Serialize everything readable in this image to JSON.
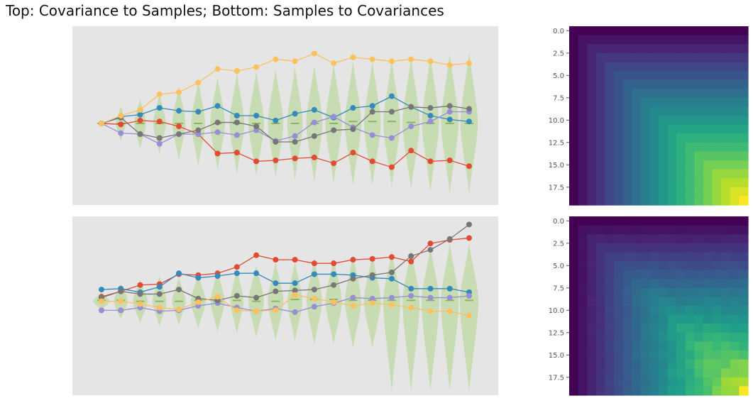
{
  "figure": {
    "title": "Top: Covariance to Samples; Bottom: Samples to Covariances"
  },
  "colors": {
    "panel_bg": "#e5e5e5",
    "violin": "#c6dbb0",
    "mean_marker": "#8db65a",
    "series": [
      "#e24a33",
      "#348abd",
      "#988ed5",
      "#777777",
      "#fbc15e"
    ]
  },
  "chart_data": [
    {
      "type": "line",
      "panel": "top-violin",
      "x": [
        0,
        1,
        2,
        3,
        4,
        5,
        6,
        7,
        8,
        9,
        10,
        11,
        12,
        13,
        14,
        15,
        16,
        17,
        18,
        19
      ],
      "ylim": [
        -4.2,
        5.0
      ],
      "violin_halfwidth": [
        0.05,
        0.25,
        0.3,
        0.32,
        0.34,
        0.36,
        0.38,
        0.38,
        0.4,
        0.4,
        0.4,
        0.42,
        0.42,
        0.42,
        0.43,
        0.43,
        0.44,
        0.44,
        0.45,
        0.45
      ],
      "violin_up": [
        0.1,
        0.9,
        1.3,
        1.6,
        1.9,
        2.2,
        2.4,
        2.6,
        2.7,
        2.8,
        2.9,
        3.0,
        3.1,
        3.2,
        3.2,
        3.3,
        3.4,
        3.5,
        3.6,
        3.7
      ],
      "violin_down": [
        0.1,
        0.9,
        1.3,
        1.6,
        1.9,
        2.2,
        2.4,
        2.6,
        2.7,
        2.8,
        2.9,
        3.0,
        3.1,
        3.2,
        3.2,
        3.3,
        3.4,
        3.5,
        3.6,
        3.6
      ],
      "means": [
        0,
        0,
        0,
        0,
        0,
        0,
        0,
        0,
        0,
        0,
        0,
        0,
        0,
        0.1,
        0.1,
        0.1,
        0.05,
        0,
        0,
        0
      ],
      "series": [
        {
          "values": [
            0,
            -0.05,
            0.15,
            0.1,
            -0.15,
            -0.55,
            -1.55,
            -1.5,
            -1.95,
            -1.9,
            -1.8,
            -1.75,
            -2.05,
            -1.5,
            -1.95,
            -2.25,
            -1.4,
            -1.95,
            -1.9,
            -2.2
          ]
        },
        {
          "values": [
            0,
            0.35,
            0.45,
            0.8,
            0.65,
            0.6,
            0.9,
            0.4,
            0.4,
            0.15,
            0.5,
            0.7,
            0.3,
            0.8,
            0.9,
            1.4,
            0.85,
            0.4,
            0.2,
            0.1
          ]
        },
        {
          "values": [
            0,
            -0.5,
            -0.55,
            -1.05,
            -0.55,
            -0.55,
            -0.45,
            -0.6,
            -0.35,
            -0.9,
            -0.65,
            0.05,
            0.35,
            -0.2,
            -0.6,
            -0.75,
            -0.15,
            0.1,
            0.6,
            0.6
          ]
        },
        {
          "values": [
            0,
            0.3,
            -0.55,
            -0.75,
            -0.55,
            -0.35,
            0.05,
            0.05,
            -0.15,
            -0.95,
            -0.95,
            -0.65,
            -0.35,
            -0.3,
            0.6,
            0.6,
            0.85,
            0.8,
            0.9,
            0.75
          ]
        },
        {
          "values": [
            0,
            0.4,
            0.7,
            1.5,
            1.6,
            2.1,
            2.8,
            2.7,
            2.9,
            3.3,
            3.2,
            3.6,
            3.1,
            3.4,
            3.3,
            3.2,
            3.3,
            3.2,
            3.0,
            3.1
          ]
        }
      ]
    },
    {
      "type": "heatmap",
      "panel": "top-covariance",
      "size": 20,
      "yticks": [
        "0.0",
        "2.5",
        "5.0",
        "7.5",
        "10.0",
        "12.5",
        "15.0",
        "17.5"
      ],
      "ytick_values": [
        0,
        2.5,
        5,
        7.5,
        10,
        12.5,
        15,
        17.5
      ],
      "pattern": "min"
    },
    {
      "type": "line",
      "panel": "bottom-violin",
      "x": [
        0,
        1,
        2,
        3,
        4,
        5,
        6,
        7,
        8,
        9,
        10,
        11,
        12,
        13,
        14,
        15,
        16,
        17,
        18,
        19
      ],
      "ylim": [
        -5.2,
        4.7
      ],
      "violin_halfwidth": [
        0.42,
        0.36,
        0.38,
        0.36,
        0.35,
        0.38,
        0.36,
        0.34,
        0.4,
        0.4,
        0.38,
        0.4,
        0.42,
        0.42,
        0.44,
        0.44,
        0.44,
        0.46,
        0.46,
        0.48
      ],
      "violin_up": [
        0.5,
        1.0,
        1.2,
        1.4,
        1.3,
        1.5,
        1.7,
        1.8,
        2.0,
        2.2,
        2.2,
        2.4,
        2.4,
        2.6,
        2.6,
        2.8,
        2.9,
        3.0,
        3.2,
        3.2
      ],
      "violin_down": [
        0.5,
        1.0,
        1.2,
        1.4,
        1.3,
        1.5,
        1.7,
        1.8,
        2.0,
        2.2,
        2.2,
        2.4,
        2.4,
        2.6,
        2.6,
        5.0,
        5.0,
        5.0,
        5.0,
        5.0
      ],
      "means": [
        0.05,
        0.05,
        0,
        0,
        0,
        0.05,
        0,
        0.05,
        0,
        0,
        0.1,
        0.1,
        0.1,
        0.05,
        0.05,
        0.05,
        0.05,
        0.05,
        0.05,
        0.05
      ],
      "series": [
        {
          "values": [
            0.25,
            0.55,
            0.9,
            0.95,
            1.5,
            1.45,
            1.55,
            1.9,
            2.55,
            2.3,
            2.3,
            2.1,
            2.1,
            2.3,
            2.35,
            2.45,
            2.2,
            3.2,
            3.4,
            3.5
          ]
        },
        {
          "values": [
            0.65,
            0.7,
            0.5,
            0.8,
            1.55,
            1.3,
            1.4,
            1.55,
            1.55,
            1.0,
            1.0,
            1.5,
            1.5,
            1.45,
            1.3,
            1.25,
            0.7,
            0.7,
            0.7,
            0.5
          ]
        },
        {
          "values": [
            -0.5,
            -0.5,
            -0.35,
            -0.55,
            -0.5,
            -0.25,
            -0.1,
            -0.35,
            -0.55,
            -0.4,
            -0.6,
            -0.3,
            -0.1,
            0.2,
            0.15,
            0.2,
            0.3,
            0.2,
            0.2,
            0.3
          ]
        },
        {
          "values": [
            0.2,
            0.55,
            0.4,
            0.4,
            0.65,
            0.15,
            0.05,
            0.3,
            0.2,
            0.55,
            0.6,
            0.65,
            0.9,
            1.25,
            1.45,
            1.6,
            2.5,
            2.85,
            3.45,
            4.25
          ]
        },
        {
          "values": [
            0.0,
            0.0,
            -0.15,
            -0.35,
            -0.45,
            -0.05,
            0.25,
            -0.5,
            -0.55,
            -0.5,
            0.35,
            0.15,
            -0.05,
            -0.25,
            -0.1,
            -0.2,
            -0.35,
            -0.55,
            -0.55,
            -0.8
          ]
        }
      ]
    },
    {
      "type": "heatmap",
      "panel": "bottom-covariance",
      "size": 20,
      "yticks": [
        "0.0",
        "2.5",
        "5.0",
        "7.5",
        "10.0",
        "12.5",
        "15.0",
        "17.5"
      ],
      "ytick_values": [
        0,
        2.5,
        5,
        7.5,
        10,
        12.5,
        15,
        17.5
      ],
      "pattern": "min-noisy"
    }
  ]
}
